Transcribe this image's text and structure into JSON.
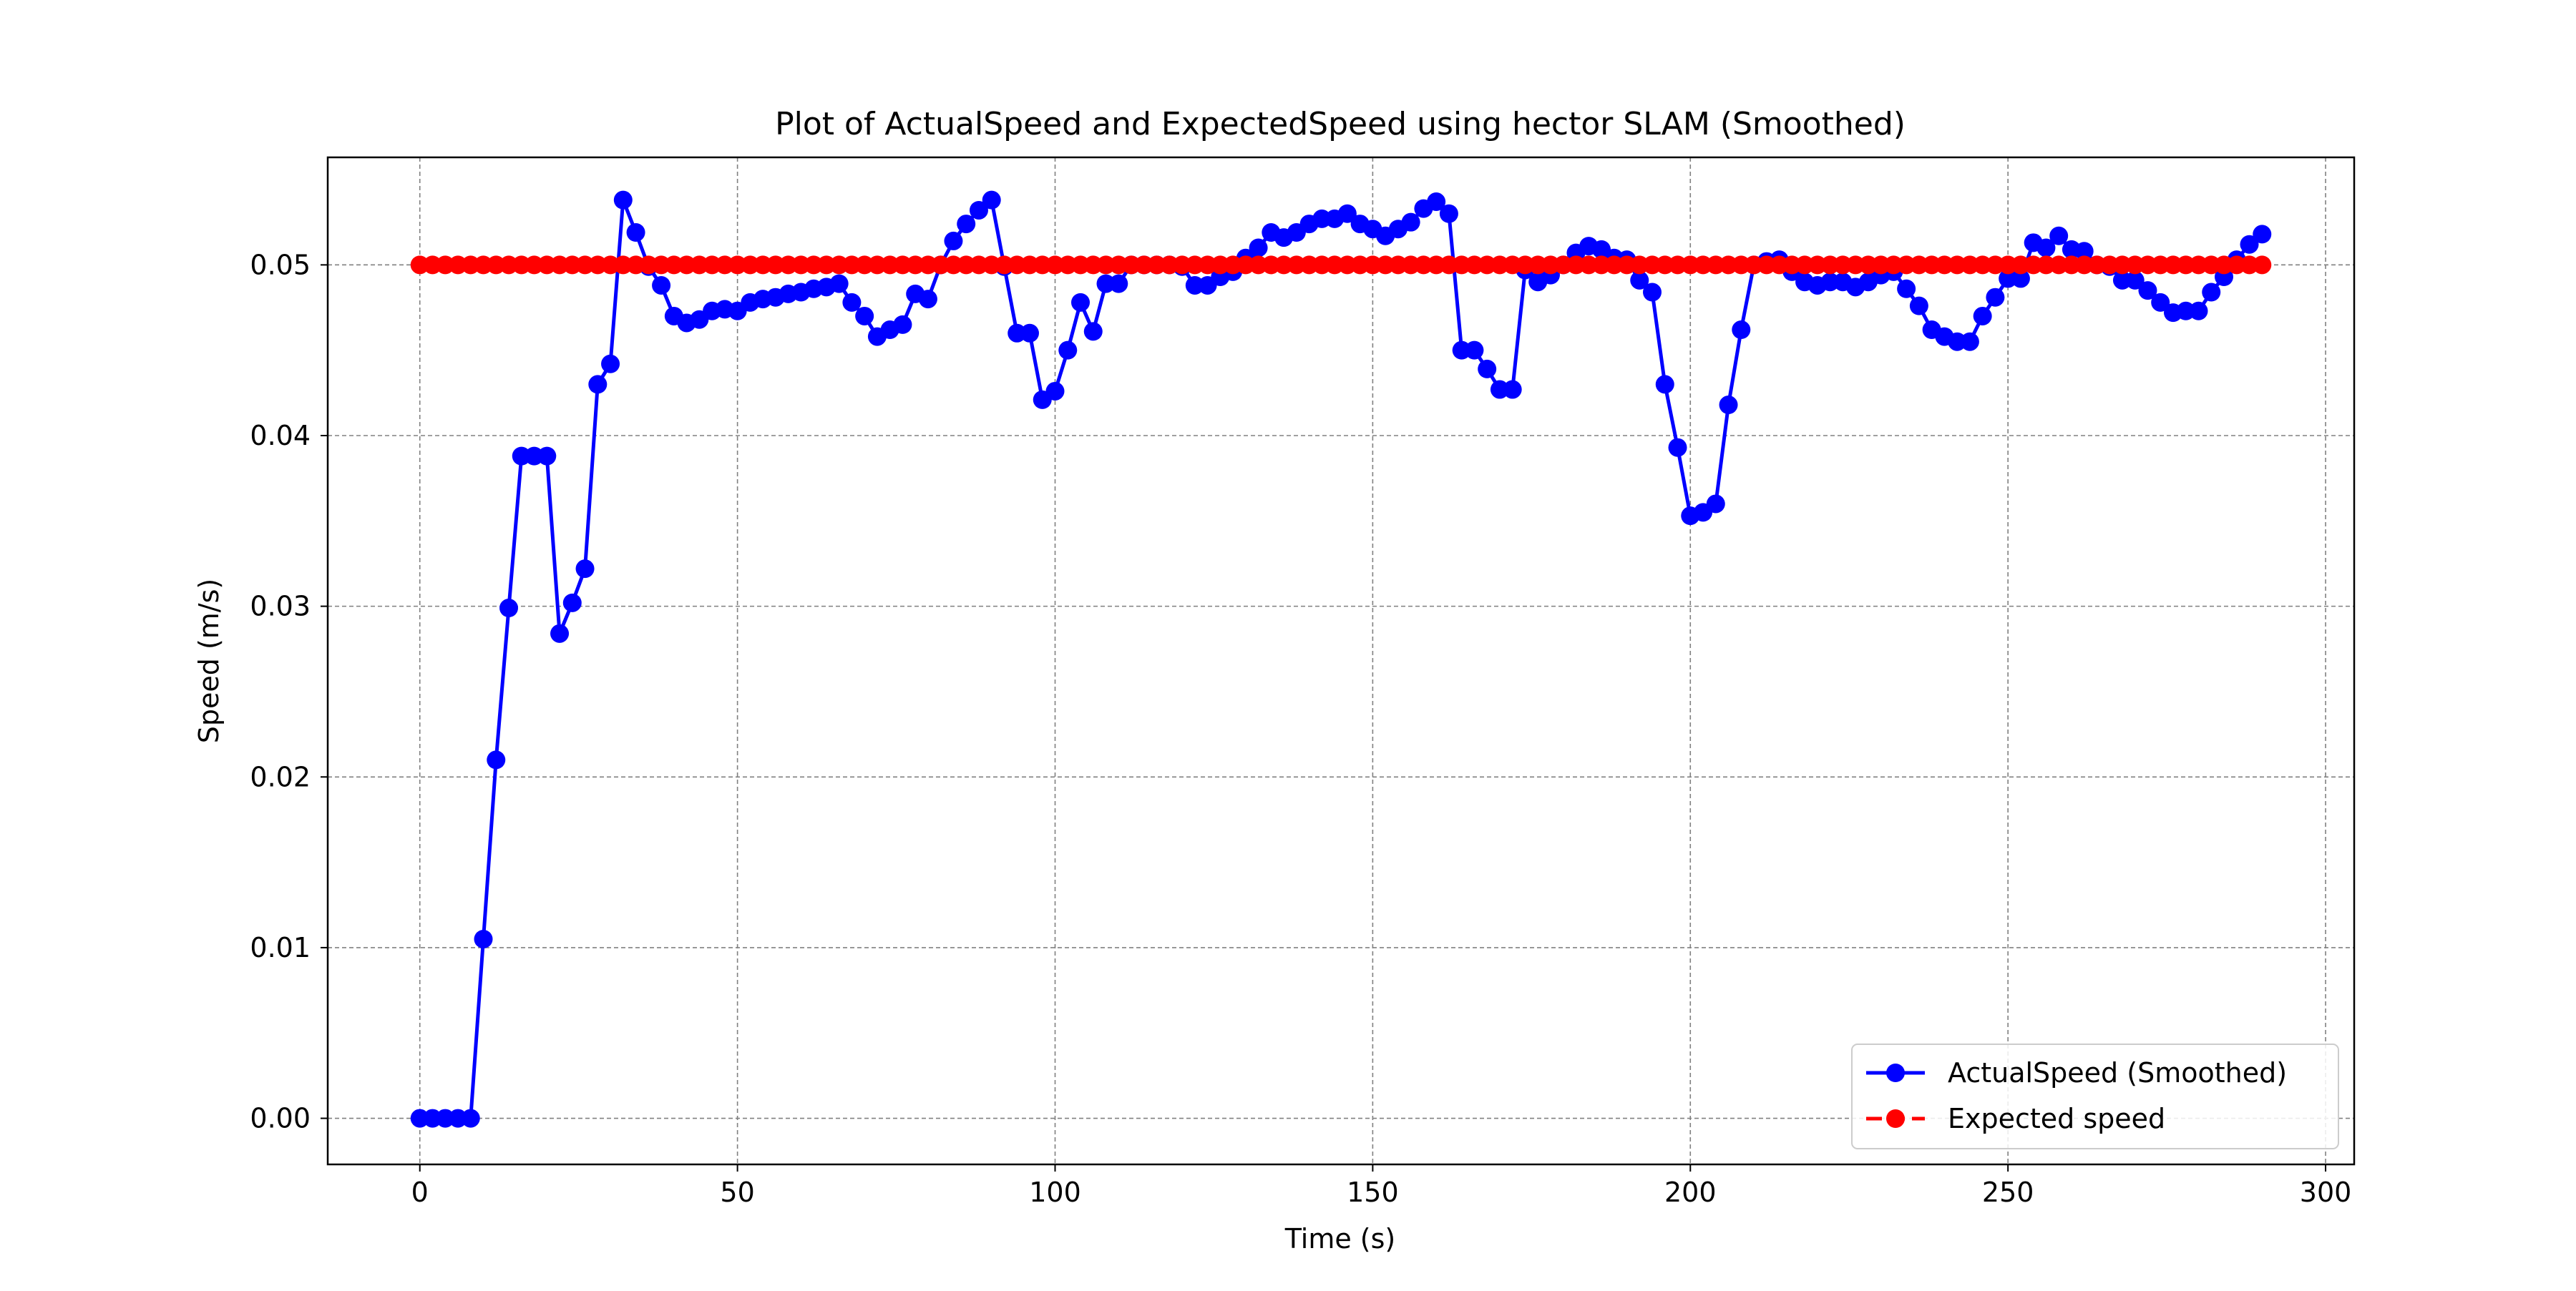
{
  "chart_data": {
    "type": "line",
    "title": "Plot of ActualSpeed and ExpectedSpeed using hector SLAM (Smoothed)",
    "xlabel": "Time (s)",
    "ylabel": "Speed (m/s)",
    "xlim": [
      -14.5,
      304.5
    ],
    "ylim": [
      -0.0027,
      0.0563
    ],
    "xticks": [
      0,
      50,
      100,
      150,
      200,
      250,
      300
    ],
    "xtick_labels": [
      "0",
      "50",
      "100",
      "150",
      "200",
      "250",
      "300"
    ],
    "yticks": [
      0.0,
      0.01,
      0.02,
      0.03,
      0.04,
      0.05
    ],
    "ytick_labels": [
      "0.00",
      "0.01",
      "0.02",
      "0.03",
      "0.04",
      "0.05"
    ],
    "grid": true,
    "legend_position": "lower-right",
    "series": [
      {
        "name": "ActualSpeed (Smoothed)",
        "color": "#0000ff",
        "linestyle": "solid",
        "marker": "circle",
        "points": [
          [
            0,
            0.0
          ],
          [
            2,
            0.0
          ],
          [
            4,
            0.0
          ],
          [
            6,
            0.0
          ],
          [
            8,
            0.0
          ],
          [
            10,
            0.0105
          ],
          [
            12,
            0.021
          ],
          [
            14,
            0.0299
          ],
          [
            16,
            0.0388
          ],
          [
            18,
            0.0388
          ],
          [
            20,
            0.0388
          ],
          [
            22,
            0.0284
          ],
          [
            24,
            0.0302
          ],
          [
            26,
            0.0322
          ],
          [
            28,
            0.043
          ],
          [
            30,
            0.0442
          ],
          [
            32,
            0.0538
          ],
          [
            34,
            0.0519
          ],
          [
            36,
            0.0499
          ],
          [
            38,
            0.0488
          ],
          [
            40,
            0.047
          ],
          [
            42,
            0.0466
          ],
          [
            44,
            0.0468
          ],
          [
            46,
            0.0473
          ],
          [
            48,
            0.0474
          ],
          [
            50,
            0.0473
          ],
          [
            52,
            0.0478
          ],
          [
            54,
            0.048
          ],
          [
            56,
            0.0481
          ],
          [
            58,
            0.0483
          ],
          [
            60,
            0.0484
          ],
          [
            62,
            0.0486
          ],
          [
            64,
            0.0487
          ],
          [
            66,
            0.0489
          ],
          [
            68,
            0.0478
          ],
          [
            70,
            0.047
          ],
          [
            72,
            0.0458
          ],
          [
            74,
            0.0462
          ],
          [
            76,
            0.0465
          ],
          [
            78,
            0.0483
          ],
          [
            80,
            0.048
          ],
          [
            82,
            0.05
          ],
          [
            84,
            0.0514
          ],
          [
            86,
            0.0524
          ],
          [
            88,
            0.0532
          ],
          [
            90,
            0.0538
          ],
          [
            92,
            0.0499
          ],
          [
            94,
            0.046
          ],
          [
            96,
            0.046
          ],
          [
            98,
            0.0421
          ],
          [
            100,
            0.0426
          ],
          [
            102,
            0.045
          ],
          [
            104,
            0.0478
          ],
          [
            106,
            0.0461
          ],
          [
            108,
            0.0489
          ],
          [
            110,
            0.0489
          ],
          [
            112,
            0.05
          ],
          [
            114,
            0.05
          ],
          [
            116,
            0.05
          ],
          [
            118,
            0.05
          ],
          [
            120,
            0.0499
          ],
          [
            122,
            0.0488
          ],
          [
            124,
            0.0488
          ],
          [
            126,
            0.0493
          ],
          [
            128,
            0.0496
          ],
          [
            130,
            0.0504
          ],
          [
            132,
            0.051
          ],
          [
            134,
            0.0519
          ],
          [
            136,
            0.0516
          ],
          [
            138,
            0.0519
          ],
          [
            140,
            0.0524
          ],
          [
            142,
            0.0527
          ],
          [
            144,
            0.0527
          ],
          [
            146,
            0.053
          ],
          [
            148,
            0.0524
          ],
          [
            150,
            0.0521
          ],
          [
            152,
            0.0517
          ],
          [
            154,
            0.0521
          ],
          [
            156,
            0.0525
          ],
          [
            158,
            0.0533
          ],
          [
            160,
            0.0537
          ],
          [
            162,
            0.053
          ],
          [
            164,
            0.045
          ],
          [
            166,
            0.045
          ],
          [
            168,
            0.0439
          ],
          [
            170,
            0.0427
          ],
          [
            172,
            0.0427
          ],
          [
            174,
            0.0497
          ],
          [
            176,
            0.049
          ],
          [
            178,
            0.0494
          ],
          [
            180,
            0.05
          ],
          [
            182,
            0.0507
          ],
          [
            184,
            0.0511
          ],
          [
            186,
            0.0509
          ],
          [
            188,
            0.0504
          ],
          [
            190,
            0.0503
          ],
          [
            192,
            0.0491
          ],
          [
            194,
            0.0484
          ],
          [
            196,
            0.043
          ],
          [
            198,
            0.0393
          ],
          [
            200,
            0.0353
          ],
          [
            202,
            0.0355
          ],
          [
            204,
            0.036
          ],
          [
            206,
            0.0418
          ],
          [
            208,
            0.0462
          ],
          [
            210,
            0.05
          ],
          [
            212,
            0.0502
          ],
          [
            214,
            0.0503
          ],
          [
            216,
            0.0496
          ],
          [
            218,
            0.049
          ],
          [
            220,
            0.0488
          ],
          [
            222,
            0.049
          ],
          [
            224,
            0.049
          ],
          [
            226,
            0.0487
          ],
          [
            228,
            0.049
          ],
          [
            230,
            0.0494
          ],
          [
            232,
            0.0496
          ],
          [
            234,
            0.0486
          ],
          [
            236,
            0.0476
          ],
          [
            238,
            0.0462
          ],
          [
            240,
            0.0458
          ],
          [
            242,
            0.0455
          ],
          [
            244,
            0.0455
          ],
          [
            246,
            0.047
          ],
          [
            248,
            0.0481
          ],
          [
            250,
            0.0492
          ],
          [
            252,
            0.0492
          ],
          [
            254,
            0.0513
          ],
          [
            256,
            0.051
          ],
          [
            258,
            0.0517
          ],
          [
            260,
            0.0509
          ],
          [
            262,
            0.0508
          ],
          [
            264,
            0.05
          ],
          [
            266,
            0.0499
          ],
          [
            268,
            0.0491
          ],
          [
            270,
            0.0491
          ],
          [
            272,
            0.0485
          ],
          [
            274,
            0.0478
          ],
          [
            276,
            0.0472
          ],
          [
            278,
            0.0473
          ],
          [
            280,
            0.0473
          ],
          [
            282,
            0.0484
          ],
          [
            284,
            0.0493
          ],
          [
            286,
            0.0503
          ],
          [
            288,
            0.0512
          ],
          [
            290,
            0.0518
          ]
        ]
      },
      {
        "name": "Expected speed",
        "color": "#ff0000",
        "linestyle": "dashed",
        "marker": "circle",
        "x_start": 0,
        "x_end": 290,
        "x_step": 2,
        "value": 0.05
      }
    ]
  }
}
